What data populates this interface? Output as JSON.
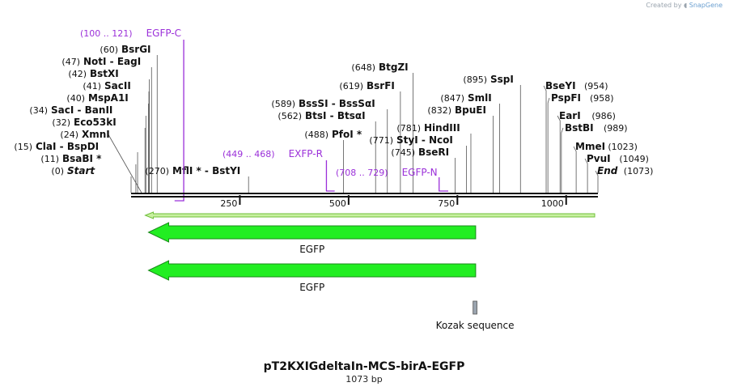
{
  "credit": {
    "prefix": "Created by",
    "brand": "SnapGene"
  },
  "title": "pT2KXIGdeltaIn-MCS-birA-EGFP",
  "length_label": "1073 bp",
  "total_bp": 1073,
  "colors": {
    "site": "#000000",
    "primer": "#9b30d9",
    "feature_fill": "#22ee22",
    "feature_stroke": "#1a8a1a",
    "arrow_fill": "#c8f0a0",
    "arrow_stroke": "#6fbf3a",
    "kozak": "#9aa4ae"
  },
  "ticks": [
    {
      "pos": 250,
      "label": "250"
    },
    {
      "pos": 500,
      "label": "500"
    },
    {
      "pos": 750,
      "label": "750"
    },
    {
      "pos": 1000,
      "label": "1000"
    }
  ],
  "sites": [
    {
      "side": "left",
      "coord": "(60)",
      "name": "BsrGI",
      "pos": 60
    },
    {
      "side": "left",
      "coord": "(47)",
      "name": "NotI  - EagI",
      "pos": 47
    },
    {
      "side": "left",
      "coord": "(42)",
      "name": "BstXI",
      "pos": 42
    },
    {
      "side": "left",
      "coord": "(41)",
      "name": "SacII",
      "pos": 41
    },
    {
      "side": "left",
      "coord": "(40)",
      "name": "MspA1I",
      "pos": 40
    },
    {
      "side": "left",
      "coord": "(34)",
      "name": "SacI  - BanII",
      "pos": 34
    },
    {
      "side": "left",
      "coord": "(32)",
      "name": "Eco53kI",
      "pos": 32
    },
    {
      "side": "left",
      "coord": "(24)",
      "name": "XmnI",
      "pos": 24
    },
    {
      "side": "left",
      "coord": "(15)",
      "name": "ClaI  - BspDI",
      "pos": 15
    },
    {
      "side": "left",
      "coord": "(11)",
      "name": "BsaBI *",
      "pos": 11
    },
    {
      "side": "left",
      "coord": "(0)",
      "name": "Start",
      "pos": 0,
      "italic": true
    },
    {
      "side": "left",
      "coord": "(270)",
      "name": "MflI *  - BstYI",
      "pos": 270
    },
    {
      "side": "left",
      "coord": "(648)",
      "name": "BtgZI",
      "pos": 648
    },
    {
      "side": "left",
      "coord": "(619)",
      "name": "BsrFI",
      "pos": 619
    },
    {
      "side": "left",
      "coord": "(589)",
      "name": "BssSI  - BssSαI",
      "pos": 589
    },
    {
      "side": "left",
      "coord": "(562)",
      "name": "BtsI  - BtsαI",
      "pos": 562
    },
    {
      "side": "left",
      "coord": "(488)",
      "name": "PfoI *",
      "pos": 488
    },
    {
      "side": "left",
      "coord": "(781)",
      "name": "HindIII",
      "pos": 781
    },
    {
      "side": "left",
      "coord": "(771)",
      "name": "StyI  - NcoI",
      "pos": 771
    },
    {
      "side": "left",
      "coord": "(745)",
      "name": "BseRI",
      "pos": 745
    },
    {
      "side": "left",
      "coord": "(847)",
      "name": "SmlI",
      "pos": 847
    },
    {
      "side": "left",
      "coord": "(832)",
      "name": "BpuEI",
      "pos": 832
    },
    {
      "side": "left",
      "coord": "(895)",
      "name": "SspI",
      "pos": 895
    },
    {
      "side": "right",
      "coord": "(954)",
      "name": "BseYI",
      "pos": 954
    },
    {
      "side": "right",
      "coord": "(958)",
      "name": "PspFI",
      "pos": 958
    },
    {
      "side": "right",
      "coord": "(986)",
      "name": "EarI",
      "pos": 986
    },
    {
      "side": "right",
      "coord": "(989)",
      "name": "BstBI",
      "pos": 989
    },
    {
      "side": "right",
      "coord": "(1023)",
      "name": "MmeI",
      "pos": 1023
    },
    {
      "side": "right",
      "coord": "(1049)",
      "name": "PvuI",
      "pos": 1049
    },
    {
      "side": "right",
      "coord": "(1073)",
      "name": "End",
      "pos": 1073,
      "italic": true
    }
  ],
  "primers": [
    {
      "range": "(100 .. 121)",
      "name": "EGFP-C",
      "start": 100,
      "end": 121
    },
    {
      "range": "(449 .. 468)",
      "name": "EXFP-R",
      "start": 449,
      "end": 468
    },
    {
      "range": "(708 .. 729)",
      "name": "EGFP-N",
      "start": 708,
      "end": 729
    }
  ],
  "features": [
    {
      "name": "EGFP",
      "start": 14,
      "end": 792,
      "direction": "reverse"
    },
    {
      "name": "EGFP",
      "start": 14,
      "end": 792,
      "direction": "reverse"
    }
  ],
  "kozak": {
    "name": "Kozak sequence",
    "start": 786,
    "end": 795
  },
  "full_arrow": {
    "start": 14,
    "end": 1073,
    "direction": "reverse"
  }
}
